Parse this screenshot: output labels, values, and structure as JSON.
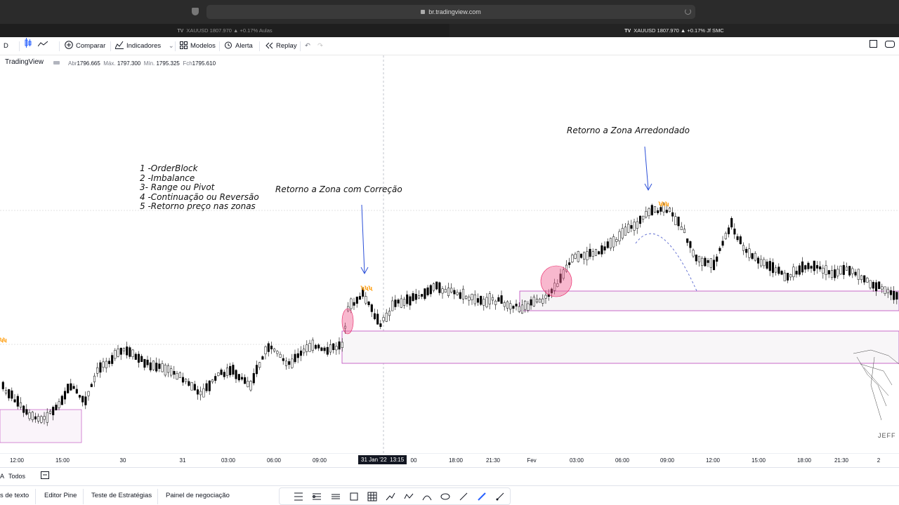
{
  "browser": {
    "url": "br.tradingview.com",
    "tabs": [
      {
        "label": "XAUUSD 1807.970 ▲ +0.17% Aulas",
        "active": false
      },
      {
        "label": "XAUUSD 1807.970 ▲ +0.17% Jf SMC",
        "active": true
      }
    ]
  },
  "toolbar": {
    "interval": "D",
    "compare": "Comparar",
    "indicators": "Indicadores",
    "templates": "Modelos",
    "alert": "Alerta",
    "replay": "Replay"
  },
  "legend": {
    "brand": "TradingView",
    "open_label": "Abr",
    "open": "1796.665",
    "high_label": "Máx.",
    "high": "1797.300",
    "low_label": "Mín.",
    "low": "1795.325",
    "close_label": "Fch",
    "close": "1795.610"
  },
  "annotations": {
    "list": [
      "1 -OrderBlock",
      "2 -Imbalance",
      "3- Range ou Pivot",
      "4 -Continuação ou Reversão",
      "5 -Retorno preço nas zonas"
    ],
    "correction": "Retorno a Zona com Correção",
    "rounded": "Retorno a Zona Arredondado",
    "watermark": "JEFF"
  },
  "xaxis": {
    "labels": [
      "12:00",
      "15:00",
      "30",
      "31",
      "03:00",
      "06:00",
      "09:00",
      "18:00",
      "21:30",
      "Fev",
      "03:00",
      "06:00",
      "09:00",
      "12:00",
      "15:00",
      "18:00",
      "21:30",
      "2"
    ],
    "cursor_date": "31 Jan '22",
    "cursor_time": "13:15"
  },
  "range_bar": {
    "all": "Todos"
  },
  "bottom_tabs": [
    "s de texto",
    "Editor Pine",
    "Teste de Estratégias",
    "Painel de negociação"
  ],
  "colors": {
    "candle_up": "#ffffff",
    "candle_down": "#000000",
    "zone_border": "#c45ac4",
    "highlight": "#f06292",
    "arrow": "#2b4fd8",
    "marker": "#ff9800"
  }
}
